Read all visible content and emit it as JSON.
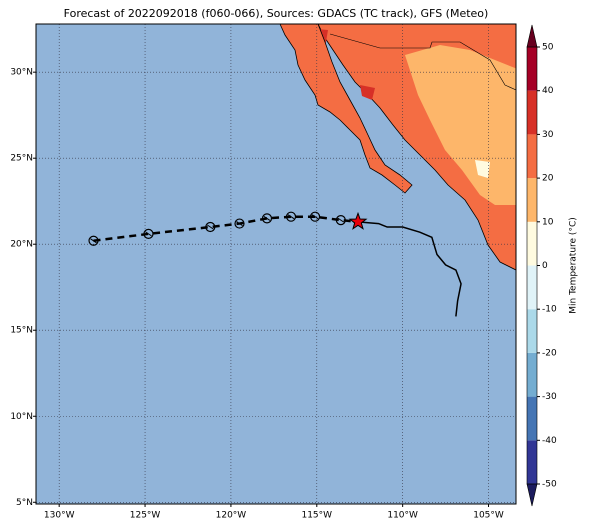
{
  "chart_data": {
    "type": "track_map",
    "title": "Forecast of 2022092018 (f060-066), Sources: GDACS (TC track), GFS (Meteo)",
    "xlim": [
      -131.35,
      -103.4
    ],
    "ylim": [
      4.9,
      32.8
    ],
    "xticks": [
      {
        "value": -130,
        "label": "130°W"
      },
      {
        "value": -125,
        "label": "125°W"
      },
      {
        "value": -120,
        "label": "120°W"
      },
      {
        "value": -115,
        "label": "115°W"
      },
      {
        "value": -110,
        "label": "110°W"
      },
      {
        "value": -105,
        "label": "105°W"
      }
    ],
    "yticks": [
      {
        "value": 5,
        "label": "5°N"
      },
      {
        "value": 10,
        "label": "10°N"
      },
      {
        "value": 15,
        "label": "15°N"
      },
      {
        "value": 20,
        "label": "20°N"
      },
      {
        "value": 25,
        "label": "25°N"
      },
      {
        "value": 30,
        "label": "30°N"
      }
    ],
    "grid": true,
    "past_track": {
      "x": [
        -128.0,
        -124.8,
        -121.2,
        -119.5,
        -117.9,
        -116.5,
        -115.1,
        -113.6
      ],
      "y": [
        20.2,
        20.6,
        21.0,
        21.2,
        21.5,
        21.6,
        21.6,
        21.4
      ],
      "color": "#000000"
    },
    "current_position": {
      "x": -112.6,
      "y": 21.3,
      "color": "#e8000b"
    },
    "forecast_track": {
      "x": [
        -112.6,
        -111.4,
        -110.9,
        -110.0,
        -109.0,
        -108.3,
        -108.0,
        -107.5,
        -106.9,
        -106.6,
        -106.8,
        -106.9
      ],
      "y": [
        21.3,
        21.2,
        21.0,
        21.0,
        20.7,
        20.4,
        19.4,
        18.8,
        18.5,
        17.7,
        16.7,
        15.8
      ],
      "color": "#000000"
    },
    "colorbar": {
      "label": "Min Temperature (°C)",
      "lim": [
        -50,
        50
      ],
      "ticks": [
        -50,
        -40,
        -30,
        -20,
        -10,
        0,
        10,
        20,
        30,
        40,
        50
      ],
      "levels": [
        -50,
        -40,
        -30,
        -20,
        -10,
        0,
        10,
        20,
        30,
        40,
        50
      ],
      "colors": [
        "#313695",
        "#4575b4",
        "#74add1",
        "#abd9e9",
        "#e0f3f8",
        "#fffbe0",
        "#fdb66a",
        "#f46d43",
        "#d73027",
        "#a50026"
      ],
      "under_color": "#1c1c5e",
      "over_color": "#67001f"
    }
  }
}
